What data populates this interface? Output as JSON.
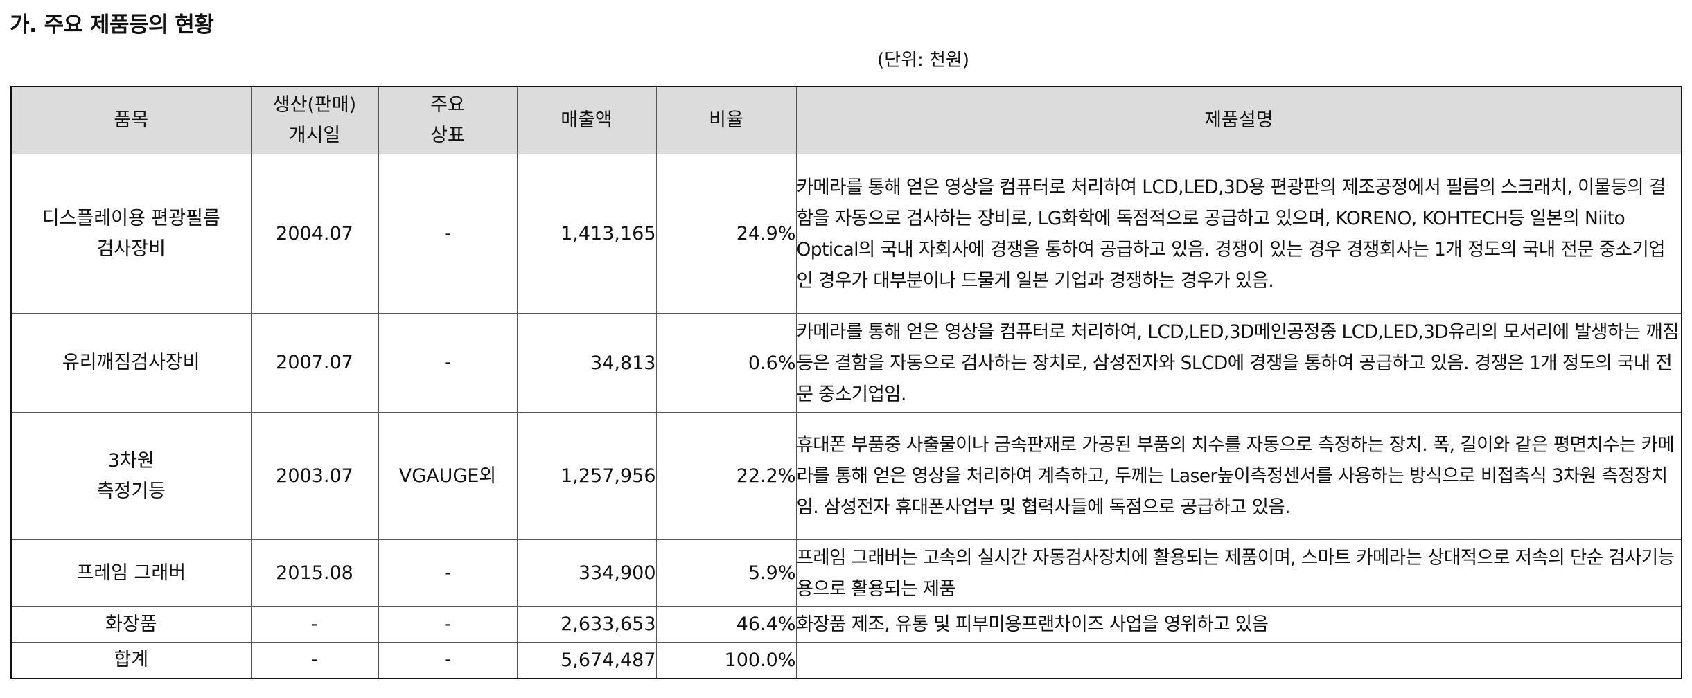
{
  "section_title": "가. 주요 제품등의 현황",
  "unit_note": "(단위: 천원)",
  "table": {
    "headers": {
      "item": "품목",
      "start_line1": "생산(판매)",
      "start_line2": "개시일",
      "brand_line1": "주요",
      "brand_line2": "상표",
      "sales": "매출액",
      "ratio": "비율",
      "description": "제품설명"
    },
    "rows": [
      {
        "item_line1": "디스플레이용 편광필름",
        "item_line2": "검사장비",
        "start_date": "2004.07",
        "brand": "-",
        "sales": "1,413,165",
        "ratio": "24.9%",
        "description": "카메라를 통해 얻은 영상을 컴퓨터로 처리하여 LCD,LED,3D용 편광판의 제조공정에서 필름의 스크래치, 이물등의 결함을 자동으로 검사하는 장비로, LG화학에 독점적으로 공급하고 있으며, KORENO, KOHTECH등 일본의 Niito Optical의 국내 자회사에 경쟁을 통하여 공급하고 있음. 경쟁이 있는 경우 경쟁회사는 1개 정도의 국내 전문 중소기업인 경우가 대부분이나 드물게 일본 기업과 경쟁하는 경우가 있음."
      },
      {
        "item_line1": "유리깨짐검사장비",
        "item_line2": "",
        "start_date": "2007.07",
        "brand": "-",
        "sales": "34,813",
        "ratio": "0.6%",
        "description": "카메라를 통해 얻은 영상을 컴퓨터로 처리하여, LCD,LED,3D메인공정중 LCD,LED,3D유리의 모서리에 발생하는 깨짐 등은 결함을 자동으로 검사하는 장치로, 삼성전자와 SLCD에 경쟁을 통하여 공급하고 있음. 경쟁은 1개 정도의 국내 전문 중소기업임."
      },
      {
        "item_line1": "3차원",
        "item_line2": "측정기등",
        "start_date": "2003.07",
        "brand": "VGAUGE외",
        "sales": "1,257,956",
        "ratio": "22.2%",
        "description": "휴대폰 부품중 사출물이나 금속판재로 가공된 부품의 치수를 자동으로 측정하는 장치. 폭, 길이와 같은 평면치수는 카메라를 통해 얻은 영상을 처리하여 계측하고, 두께는 Laser높이측정센서를 사용하는 방식으로 비접촉식 3차원 측정장치임. 삼성전자 휴대폰사업부 및 협력사들에 독점으로 공급하고 있음."
      },
      {
        "item_line1": "프레임 그래버",
        "item_line2": "",
        "start_date": "2015.08",
        "brand": "-",
        "sales": "334,900",
        "ratio": "5.9%",
        "description": "프레임 그래버는 고속의 실시간 자동검사장치에 활용되는 제품이며, 스마트 카메라는 상대적으로 저속의 단순 검사기능용으로 활용되는 제품"
      },
      {
        "item_line1": "화장품",
        "item_line2": "",
        "start_date": "-",
        "brand": "-",
        "sales": "2,633,653",
        "ratio": "46.4%",
        "description": "화장품 제조, 유통 및 피부미용프랜차이즈 사업을 영위하고 있음"
      },
      {
        "item_line1": "합계",
        "item_line2": "",
        "start_date": "-",
        "brand": "-",
        "sales": "5,674,487",
        "ratio": "100.0%",
        "description": ""
      }
    ]
  }
}
